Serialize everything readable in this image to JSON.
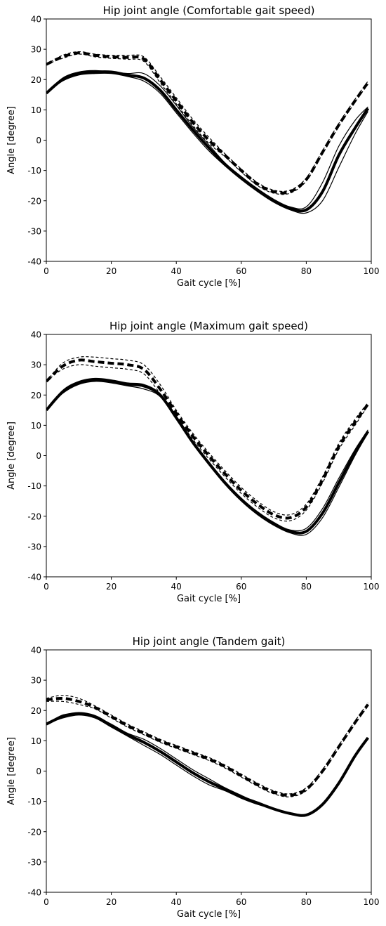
{
  "chart_data": [
    {
      "type": "line",
      "title": "Hip joint angle (Comfortable gait speed)",
      "xlabel": "Gait cycle [%]",
      "ylabel": "Angle [degree]",
      "xlim": [
        0,
        100
      ],
      "ylim": [
        -40,
        40
      ],
      "xticks": [
        0,
        20,
        40,
        60,
        80,
        100
      ],
      "yticks": [
        -40,
        -30,
        -20,
        -10,
        0,
        10,
        20,
        30,
        40
      ],
      "grid": false,
      "series": [
        {
          "style": "dashed-thick",
          "x": [
            0,
            5,
            10,
            15,
            20,
            25,
            30,
            35,
            40,
            45,
            50,
            55,
            60,
            65,
            70,
            75,
            80,
            85,
            90,
            95,
            99
          ],
          "y": [
            25,
            27.5,
            28.8,
            28,
            27.5,
            27.3,
            26.8,
            20,
            13,
            6,
            0,
            -5,
            -10,
            -14.5,
            -17,
            -17,
            -13,
            -4,
            5,
            13,
            19
          ]
        },
        {
          "style": "dashed-thin",
          "x": [
            0,
            5,
            10,
            15,
            20,
            25,
            30,
            35,
            40,
            45,
            50,
            55,
            60,
            65,
            70,
            75,
            80,
            85,
            90,
            95,
            99
          ],
          "y": [
            25,
            28,
            29.2,
            28.4,
            28,
            28,
            27.5,
            21,
            14,
            7,
            1,
            -4.5,
            -9.5,
            -14,
            -16.5,
            -16.5,
            -12.5,
            -3.5,
            5.5,
            13.5,
            19.5
          ]
        },
        {
          "style": "dashed-thin",
          "x": [
            0,
            5,
            10,
            15,
            20,
            25,
            30,
            35,
            40,
            45,
            50,
            55,
            60,
            65,
            70,
            75,
            80,
            85,
            90,
            95,
            99
          ],
          "y": [
            25,
            27,
            28.4,
            27.5,
            27,
            26.7,
            26,
            19,
            12,
            5,
            -1,
            -5.5,
            -10.5,
            -15,
            -17.5,
            -17.5,
            -13.5,
            -4.5,
            4.5,
            12.5,
            18.5
          ]
        },
        {
          "style": "solid-thick",
          "x": [
            0,
            5,
            10,
            15,
            20,
            25,
            30,
            35,
            40,
            45,
            50,
            55,
            60,
            65,
            70,
            75,
            80,
            85,
            90,
            95,
            99
          ],
          "y": [
            15.5,
            20,
            22,
            22.5,
            22.5,
            21.5,
            20.5,
            16.5,
            10,
            3.5,
            -2.5,
            -8,
            -12.5,
            -16.5,
            -20,
            -22.5,
            -23,
            -17,
            -5,
            4,
            10.5
          ]
        },
        {
          "style": "solid-thin",
          "x": [
            0,
            5,
            10,
            15,
            20,
            25,
            30,
            35,
            40,
            45,
            50,
            55,
            60,
            65,
            70,
            75,
            80,
            85,
            90,
            95,
            99
          ],
          "y": [
            15.5,
            20.5,
            22.5,
            23,
            22.5,
            22,
            22,
            18,
            11.5,
            4.5,
            -1.5,
            -7.5,
            -12,
            -16,
            -19.5,
            -22,
            -22,
            -14,
            -2,
            6.5,
            11
          ]
        },
        {
          "style": "solid-thin",
          "x": [
            0,
            5,
            10,
            15,
            20,
            25,
            30,
            35,
            40,
            45,
            50,
            55,
            60,
            65,
            70,
            75,
            80,
            85,
            90,
            95,
            99
          ],
          "y": [
            15.5,
            19.5,
            21.5,
            22,
            22,
            21,
            19.5,
            15.5,
            9,
            2.5,
            -3.5,
            -8.5,
            -13,
            -17,
            -20.5,
            -23,
            -24,
            -20,
            -9,
            2,
            9.5
          ]
        }
      ]
    },
    {
      "type": "line",
      "title": "Hip joint angle (Maximum gait speed)",
      "xlabel": "Gait cycle [%]",
      "ylabel": "Angle [degree]",
      "xlim": [
        0,
        100
      ],
      "ylim": [
        -40,
        40
      ],
      "xticks": [
        0,
        20,
        40,
        60,
        80,
        100
      ],
      "yticks": [
        -40,
        -30,
        -20,
        -10,
        0,
        10,
        20,
        30,
        40
      ],
      "grid": false,
      "series": [
        {
          "style": "dashed-thick",
          "x": [
            0,
            5,
            10,
            15,
            20,
            25,
            30,
            35,
            40,
            45,
            50,
            55,
            60,
            65,
            70,
            75,
            80,
            85,
            90,
            95,
            99
          ],
          "y": [
            24.5,
            29.5,
            31.5,
            31,
            30.5,
            30,
            28.5,
            22,
            14,
            6.5,
            0,
            -6,
            -11.5,
            -16,
            -19.5,
            -20.5,
            -17,
            -8,
            3,
            11,
            17
          ]
        },
        {
          "style": "dashed-thin",
          "x": [
            0,
            5,
            10,
            15,
            20,
            25,
            30,
            35,
            40,
            45,
            50,
            55,
            60,
            65,
            70,
            75,
            80,
            85,
            90,
            95,
            99
          ],
          "y": [
            24.5,
            30.5,
            32.5,
            32.5,
            32,
            31.5,
            30,
            23.5,
            15,
            7.5,
            1,
            -5,
            -10.5,
            -15,
            -18.5,
            -19.5,
            -16,
            -7,
            4,
            12,
            17.5
          ]
        },
        {
          "style": "dashed-thin",
          "x": [
            0,
            5,
            10,
            15,
            20,
            25,
            30,
            35,
            40,
            45,
            50,
            55,
            60,
            65,
            70,
            75,
            80,
            85,
            90,
            95,
            99
          ],
          "y": [
            24.5,
            28.5,
            30,
            29.5,
            29,
            28.5,
            27,
            20.5,
            13,
            5.5,
            -1,
            -7,
            -12.5,
            -17,
            -20.5,
            -21.5,
            -18,
            -9,
            2,
            10,
            16.5
          ]
        },
        {
          "style": "solid-thick",
          "x": [
            0,
            5,
            10,
            15,
            20,
            25,
            30,
            35,
            40,
            45,
            50,
            55,
            60,
            65,
            70,
            75,
            80,
            85,
            90,
            95,
            99
          ],
          "y": [
            15,
            21,
            24,
            25,
            24.5,
            23.5,
            23,
            20,
            12.5,
            4.5,
            -2.5,
            -9,
            -14.5,
            -19,
            -22.5,
            -25,
            -25,
            -19,
            -9,
            1,
            8
          ]
        },
        {
          "style": "solid-thin",
          "x": [
            0,
            5,
            10,
            15,
            20,
            25,
            30,
            35,
            40,
            45,
            50,
            55,
            60,
            65,
            70,
            75,
            80,
            85,
            90,
            95,
            99
          ],
          "y": [
            15,
            21.5,
            24.5,
            25.5,
            25,
            24,
            23.5,
            20.5,
            13,
            5,
            -2,
            -8.5,
            -14,
            -18.5,
            -22,
            -24.5,
            -24,
            -17.5,
            -7.5,
            2,
            8.5
          ]
        },
        {
          "style": "solid-thin",
          "x": [
            0,
            5,
            10,
            15,
            20,
            25,
            30,
            35,
            40,
            45,
            50,
            55,
            60,
            65,
            70,
            75,
            80,
            85,
            90,
            95,
            99
          ],
          "y": [
            15,
            20.5,
            23.5,
            24.5,
            24,
            23,
            22,
            19.5,
            12,
            4,
            -3,
            -9.5,
            -15,
            -19.5,
            -23,
            -25.5,
            -26,
            -20.5,
            -10.5,
            0,
            7.5
          ]
        }
      ]
    },
    {
      "type": "line",
      "title": "Hip joint angle (Tandem gait)",
      "xlabel": "Gait cycle [%]",
      "ylabel": "Angle [degree]",
      "xlim": [
        0,
        100
      ],
      "ylim": [
        -40,
        40
      ],
      "xticks": [
        0,
        20,
        40,
        60,
        80,
        100
      ],
      "yticks": [
        -40,
        -30,
        -20,
        -10,
        0,
        10,
        20,
        30,
        40
      ],
      "grid": false,
      "series": [
        {
          "style": "dashed-thick",
          "x": [
            0,
            5,
            10,
            15,
            20,
            25,
            30,
            35,
            40,
            45,
            50,
            55,
            60,
            65,
            70,
            75,
            80,
            85,
            90,
            95,
            99
          ],
          "y": [
            23.5,
            24,
            23,
            21,
            18,
            15,
            12.5,
            10,
            8,
            6,
            4,
            1.5,
            -1.5,
            -4.5,
            -7,
            -8,
            -6,
            0,
            8,
            16,
            22
          ]
        },
        {
          "style": "dashed-thin",
          "x": [
            0,
            5,
            10,
            15,
            20,
            25,
            30,
            35,
            40,
            45,
            50,
            55,
            60,
            65,
            70,
            75,
            80,
            85,
            90,
            95,
            99
          ],
          "y": [
            24,
            25,
            24,
            21.5,
            18.5,
            15.5,
            13,
            10.5,
            8.5,
            6.5,
            4.5,
            2,
            -1,
            -4,
            -6.5,
            -7.5,
            -5.5,
            0.5,
            8.5,
            16.5,
            22.5
          ]
        },
        {
          "style": "dashed-thin",
          "x": [
            0,
            5,
            10,
            15,
            20,
            25,
            30,
            35,
            40,
            45,
            50,
            55,
            60,
            65,
            70,
            75,
            80,
            85,
            90,
            95,
            99
          ],
          "y": [
            23,
            23,
            22,
            20.5,
            17.5,
            14.5,
            12,
            9.5,
            7.5,
            5.5,
            3.5,
            1,
            -2,
            -5,
            -7.5,
            -8.5,
            -6.5,
            -0.5,
            7.5,
            15.5,
            21.5
          ]
        },
        {
          "style": "solid-thick",
          "x": [
            0,
            5,
            10,
            15,
            20,
            25,
            30,
            35,
            40,
            45,
            50,
            55,
            60,
            65,
            70,
            75,
            80,
            85,
            90,
            95,
            99
          ],
          "y": [
            15.5,
            18,
            19,
            18,
            15,
            12,
            9.5,
            6.5,
            3,
            -0.5,
            -3.5,
            -6,
            -8.5,
            -10.5,
            -12.5,
            -14,
            -14.5,
            -11,
            -4,
            5,
            11
          ]
        },
        {
          "style": "solid-thin",
          "x": [
            0,
            5,
            10,
            15,
            20,
            25,
            30,
            35,
            40,
            45,
            50,
            55,
            60,
            65,
            70,
            75,
            80,
            85,
            90,
            95,
            99
          ],
          "y": [
            15.5,
            18.5,
            19,
            18,
            15.5,
            12.5,
            10.5,
            7.5,
            4,
            0.5,
            -2.5,
            -5.5,
            -8,
            -10.5,
            -12.5,
            -14,
            -14.5,
            -11,
            -4,
            5,
            11
          ]
        },
        {
          "style": "solid-thin",
          "x": [
            0,
            5,
            10,
            15,
            20,
            25,
            30,
            35,
            40,
            45,
            50,
            55,
            60,
            65,
            70,
            75,
            80,
            85,
            90,
            95,
            99
          ],
          "y": [
            15.5,
            17.5,
            18.5,
            17.5,
            14.5,
            11.5,
            8.5,
            5.5,
            2,
            -1.5,
            -4.5,
            -6.5,
            -9,
            -11,
            -12.5,
            -14,
            -14.5,
            -11,
            -4,
            5,
            11
          ]
        }
      ]
    }
  ]
}
